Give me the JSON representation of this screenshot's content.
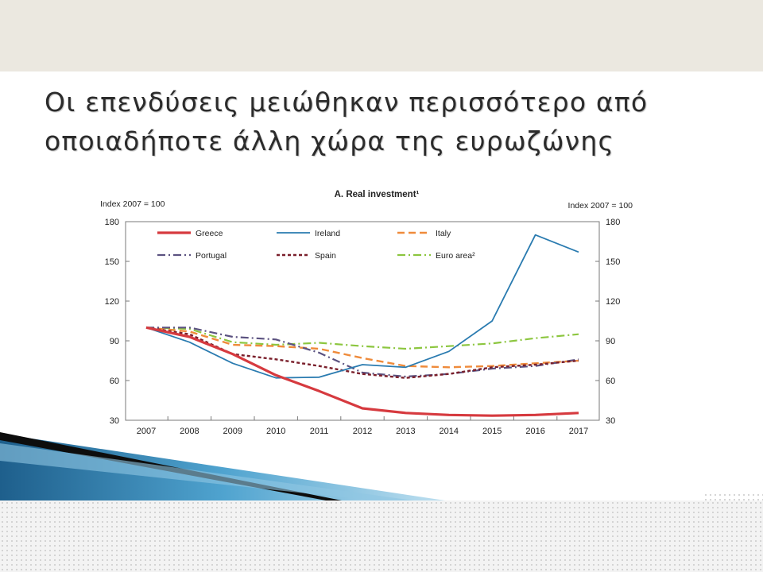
{
  "slide": {
    "title_line1": "Οι επενδύσεις μειώθηκαν περισσότερο από",
    "title_line2": "οποιαδήποτε άλλη χώρα της ευρωζώνης"
  },
  "chart_data": {
    "type": "line",
    "title": "A. Real investment¹",
    "ylabel_left": "Index 2007 = 100",
    "ylabel_right": "Index 2007 = 100",
    "ylim": [
      30,
      180
    ],
    "yticks": [
      30,
      60,
      90,
      120,
      150,
      180
    ],
    "grid": false,
    "legend_position": "top",
    "x": [
      "2007",
      "2008",
      "2009",
      "2010",
      "2011",
      "2012",
      "2013",
      "2014",
      "2015",
      "2016",
      "2017"
    ],
    "series": [
      {
        "name": "Greece",
        "color": "#d63a3f",
        "dash": "solid",
        "width": 3.2,
        "values": [
          100,
          93,
          80,
          64,
          52,
          39,
          35.5,
          34,
          33.5,
          34,
          35.5
        ]
      },
      {
        "name": "Ireland",
        "color": "#2a7bb0",
        "dash": "solid",
        "width": 1.8,
        "values": [
          100,
          89,
          73,
          62,
          62.5,
          72,
          70,
          82,
          105,
          170,
          157
        ]
      },
      {
        "name": "Italy",
        "color": "#ef8b3b",
        "dash": "dash",
        "width": 2.4,
        "values": [
          100,
          97,
          87,
          86,
          84,
          77,
          71,
          70,
          71,
          73,
          75
        ]
      },
      {
        "name": "Portugal",
        "color": "#5b5280",
        "dash": "dashdot",
        "width": 2.2,
        "values": [
          100,
          100,
          93,
          91,
          81,
          66,
          63,
          65,
          69,
          71,
          76
        ]
      },
      {
        "name": "Spain",
        "color": "#7a1f2b",
        "dash": "dot",
        "width": 2.4,
        "values": [
          100,
          95,
          80,
          76,
          71,
          65,
          62,
          65,
          70,
          72,
          75
        ]
      },
      {
        "name": "Euro area²",
        "color": "#8cc63f",
        "dash": "dashdot",
        "width": 2.2,
        "values": [
          100,
          99,
          89,
          87,
          88.5,
          86,
          84,
          86,
          88,
          92,
          95
        ]
      }
    ]
  }
}
